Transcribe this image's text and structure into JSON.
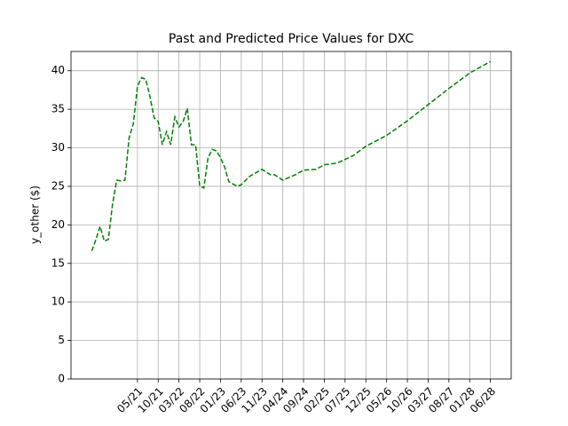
{
  "chart_data": {
    "type": "line",
    "title": "Past and Predicted Price Values for DXC",
    "y_label": "y_other ($)",
    "x": [
      "06/20",
      "07/20",
      "08/20",
      "09/20",
      "10/20",
      "11/20",
      "12/20",
      "01/21",
      "02/21",
      "03/21",
      "04/21",
      "05/21",
      "06/21",
      "07/21",
      "08/21",
      "09/21",
      "10/21",
      "11/21",
      "12/21",
      "01/22",
      "02/22",
      "03/22",
      "04/22",
      "05/22",
      "06/22",
      "07/22",
      "08/22",
      "09/22",
      "10/22",
      "11/22",
      "12/22",
      "01/23",
      "02/23",
      "03/23",
      "04/23",
      "05/23",
      "06/23",
      "08/23",
      "11/23",
      "01/24",
      "02/24",
      "04/24",
      "07/24",
      "09/24",
      "12/24",
      "02/25",
      "05/25",
      "07/25",
      "09/25",
      "12/25",
      "05/26",
      "10/26",
      "03/27",
      "08/27",
      "01/28",
      "06/28"
    ],
    "values": [
      16.6,
      18.1,
      19.8,
      17.9,
      18.1,
      22.7,
      25.8,
      25.7,
      25.8,
      31.3,
      33.1,
      38.0,
      39.1,
      38.9,
      36.7,
      33.9,
      33.4,
      30.4,
      32.1,
      30.4,
      34.0,
      32.7,
      33.4,
      35.1,
      30.4,
      30.4,
      25.0,
      24.8,
      28.7,
      29.8,
      29.6,
      28.7,
      27.5,
      25.6,
      25.3,
      25.0,
      25.2,
      26.3,
      27.2,
      26.5,
      26.5,
      25.8,
      26.5,
      27.1,
      27.2,
      27.8,
      28.0,
      28.5,
      29.0,
      30.2,
      31.6,
      33.5,
      35.6,
      37.7,
      39.7,
      41.2
    ],
    "color": "#008000",
    "line_style": "dashed",
    "xlim": [
      "01/20",
      "11/28"
    ],
    "xticks": [
      "05/21",
      "10/21",
      "03/22",
      "08/22",
      "01/23",
      "06/23",
      "11/23",
      "04/24",
      "09/24",
      "02/25",
      "07/25",
      "12/25",
      "05/26",
      "10/26",
      "03/27",
      "08/27",
      "01/28",
      "06/28"
    ],
    "ylim": [
      0,
      42.5
    ],
    "yticks": [
      0,
      5,
      10,
      15,
      20,
      25,
      30,
      35,
      40
    ],
    "grid": true
  }
}
